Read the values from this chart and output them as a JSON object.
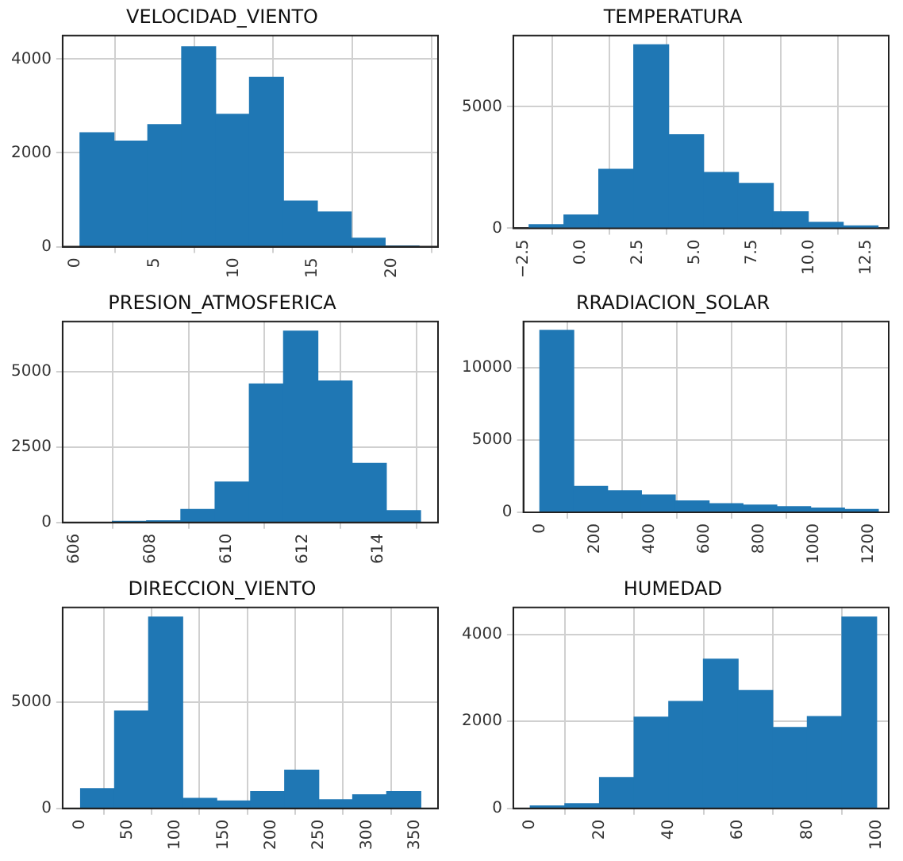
{
  "chart_data": [
    {
      "type": "histogram",
      "title": "VELOCIDAD_VIENTO",
      "color": "#1f77b4",
      "grid": true,
      "bins": [
        0.3,
        2.44,
        4.58,
        6.72,
        8.86,
        11.0,
        13.14,
        15.28,
        17.42,
        19.56,
        21.7
      ],
      "values": [
        2430,
        2250,
        2600,
        4260,
        2820,
        3610,
        970,
        740,
        180,
        10
      ],
      "xlim": [
        -0.8,
        22.9
      ],
      "ylim": [
        0,
        4500
      ],
      "xticks": [
        0,
        5,
        10,
        15,
        20
      ],
      "yticks": [
        0,
        2000,
        4000
      ]
    },
    {
      "type": "histogram",
      "title": "TEMPERATURA",
      "color": "#1f77b4",
      "grid": true,
      "bins": [
        -2.27,
        -0.74,
        0.78,
        2.31,
        3.84,
        5.37,
        6.89,
        8.42,
        9.95,
        11.48,
        13.0
      ],
      "values": [
        150,
        550,
        2430,
        7550,
        3850,
        2300,
        1850,
        680,
        250,
        100
      ],
      "xlim": [
        -2.96,
        13.47
      ],
      "ylim": [
        0,
        7930
      ],
      "xticks": [
        {
          "value": -2.5,
          "label": "−2.5"
        },
        {
          "value": 0,
          "label": "0.0"
        },
        2.5,
        {
          "value": 5,
          "label": "5.0"
        },
        7.5,
        {
          "value": 10,
          "label": "10.0"
        },
        12.5
      ],
      "yticks": [
        0,
        5000
      ]
    },
    {
      "type": "histogram",
      "title": "PRESION_ATMOSFERICA",
      "color": "#1f77b4",
      "grid": true,
      "bins": [
        606.1,
        607.0,
        607.9,
        608.8,
        609.7,
        610.6,
        611.5,
        612.4,
        613.3,
        614.2,
        615.1
      ],
      "values": [
        0,
        40,
        60,
        430,
        1340,
        4590,
        6340,
        4690,
        1960,
        390
      ],
      "xlim": [
        605.69,
        615.56
      ],
      "ylim": [
        0,
        6660
      ],
      "xticks": [
        606,
        608,
        610,
        612,
        614
      ],
      "yticks": [
        0,
        2500,
        5000
      ]
    },
    {
      "type": "histogram",
      "title": "RRADIACION_SOLAR",
      "color": "#1f77b4",
      "grid": true,
      "bins": [
        0,
        123.4,
        246.8,
        370.2,
        493.6,
        617,
        740.4,
        863.8,
        987.2,
        1110.6,
        1234
      ],
      "values": [
        12600,
        1800,
        1500,
        1200,
        800,
        600,
        500,
        400,
        300,
        200
      ],
      "xlim": [
        -60,
        1272
      ],
      "ylim": [
        0,
        13210
      ],
      "xticks": [
        0,
        200,
        400,
        600,
        800,
        1000,
        1200
      ],
      "yticks": [
        0,
        5000,
        10000
      ]
    },
    {
      "type": "histogram",
      "title": "DIRECCION_VIENTO",
      "color": "#1f77b4",
      "grid": true,
      "bins": [
        1,
        36.5,
        72,
        107.5,
        143,
        178.5,
        214,
        249.5,
        285,
        320.5,
        356
      ],
      "values": [
        930,
        4590,
        9010,
        470,
        350,
        790,
        1800,
        410,
        640,
        790
      ],
      "xlim": [
        -17.8,
        374
      ],
      "ylim": [
        0,
        9460
      ],
      "xticks": [
        0,
        50,
        100,
        150,
        200,
        250,
        300,
        350
      ],
      "yticks": [
        0,
        5000
      ]
    },
    {
      "type": "histogram",
      "title": "HUMEDAD",
      "color": "#1f77b4",
      "grid": true,
      "bins": [
        0,
        10,
        20,
        30,
        40,
        50,
        60,
        70,
        80,
        90,
        100
      ],
      "values": [
        60,
        110,
        710,
        2100,
        2460,
        3430,
        2710,
        1860,
        2110,
        4400
      ],
      "xlim": [
        -4.9,
        103.5
      ],
      "ylim": [
        0,
        4620
      ],
      "xticks": [
        0,
        20,
        40,
        60,
        80,
        100
      ],
      "yticks": [
        0,
        2000,
        4000
      ]
    }
  ]
}
